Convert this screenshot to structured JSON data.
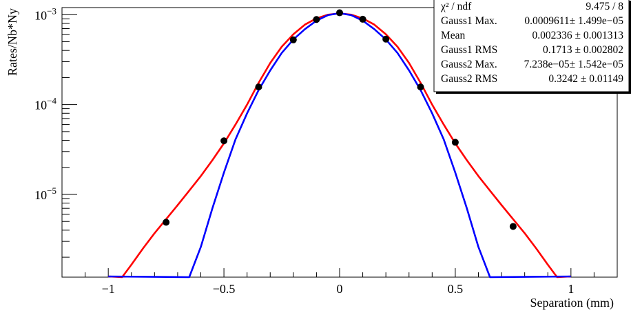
{
  "chart_data": {
    "type": "scatter",
    "xlabel": "Separation (mm)",
    "ylabel": "Rates/Nb*Ny",
    "xlim": [
      -1.2,
      1.2
    ],
    "ylim": [
      1.2e-06,
      0.0012
    ],
    "yscale": "log",
    "grid": false,
    "x_ticks": [
      {
        "value": -1,
        "label": "−1"
      },
      {
        "value": -0.5,
        "label": "−0.5"
      },
      {
        "value": 0,
        "label": "0"
      },
      {
        "value": 0.5,
        "label": "0.5"
      },
      {
        "value": 1,
        "label": "1"
      }
    ],
    "y_ticks": [
      {
        "value": 0.001,
        "base": "10",
        "exp": "−3"
      },
      {
        "value": 0.0001,
        "base": "10",
        "exp": "−4"
      },
      {
        "value": 1e-05,
        "base": "10",
        "exp": "−5"
      }
    ],
    "points": {
      "color": "#000000",
      "x": [
        -0.75,
        -0.5,
        -0.35,
        -0.2,
        -0.1,
        0.0,
        0.1,
        0.2,
        0.35,
        0.5,
        0.75
      ],
      "y": [
        4.9e-06,
        3.95e-05,
        0.000157,
        0.000525,
        0.000885,
        0.00105,
        0.00089,
        0.000535,
        0.000157,
        3.8e-05,
        4.4e-06
      ]
    },
    "curves": [
      {
        "color": "#ff0000",
        "x": [
          -0.94,
          -0.9,
          -0.85,
          -0.8,
          -0.75,
          -0.7,
          -0.65,
          -0.6,
          -0.55,
          -0.5,
          -0.45,
          -0.4,
          -0.35,
          -0.3,
          -0.25,
          -0.2,
          -0.15,
          -0.1,
          -0.05,
          0,
          0.05,
          0.1,
          0.15,
          0.2,
          0.25,
          0.3,
          0.35,
          0.4,
          0.45,
          0.5,
          0.55,
          0.6,
          0.65,
          0.7,
          0.75,
          0.8,
          0.85,
          0.9,
          0.94
        ],
        "y": [
          1.2e-06,
          1.65e-06,
          2.5e-06,
          3.7e-06,
          5.3e-06,
          7.6e-06,
          1.1e-05,
          1.6e-05,
          2.4e-05,
          3.7e-05,
          6e-05,
          0.0001,
          0.000175,
          0.00029,
          0.00044,
          0.000605,
          0.000775,
          0.00091,
          0.001,
          0.001035,
          0.001,
          0.00091,
          0.000775,
          0.000605,
          0.00044,
          0.00029,
          0.000175,
          0.0001,
          6e-05,
          3.7e-05,
          2.4e-05,
          1.6e-05,
          1.1e-05,
          7.6e-06,
          5.3e-06,
          3.7e-06,
          2.5e-06,
          1.65e-06,
          1.2e-06
        ]
      },
      {
        "color": "#0000ff",
        "x": [
          -0.65,
          -0.6,
          -0.55,
          -0.5,
          -0.45,
          -0.4,
          -0.35,
          -0.3,
          -0.25,
          -0.2,
          -0.15,
          -0.1,
          -0.05,
          0,
          0.05,
          0.1,
          0.15,
          0.2,
          0.25,
          0.3,
          0.35,
          0.4,
          0.45,
          0.5,
          0.55,
          0.6,
          0.65
        ],
        "y": [
          1.2e-06,
          2.6e-06,
          7e-06,
          1.75e-05,
          4.1e-05,
          8e-05,
          0.000145,
          0.00024,
          0.000375,
          0.00053,
          0.00069,
          0.00086,
          0.00099,
          0.00104,
          0.00099,
          0.00086,
          0.00069,
          0.00053,
          0.000375,
          0.00024,
          0.000145,
          8e-05,
          4.1e-05,
          1.75e-05,
          7e-06,
          2.6e-06,
          1.2e-06
        ]
      }
    ],
    "legend_position": "top-right",
    "stats": {
      "rows": [
        {
          "name": "χ² / ndf",
          "value": "9.475 / 8"
        },
        {
          "name": "Gauss1 Max.",
          "value": "0.0009611± 1.499e−05"
        },
        {
          "name": "Mean",
          "value": "0.002336 ± 0.001313"
        },
        {
          "name": "Gauss1 RMS",
          "value": "0.1713 ± 0.002802"
        },
        {
          "name": "Gauss2 Max.",
          "value": "7.238e−05± 1.542e−05"
        },
        {
          "name": "Gauss2 RMS",
          "value": "0.3242 ± 0.01149"
        }
      ]
    }
  }
}
